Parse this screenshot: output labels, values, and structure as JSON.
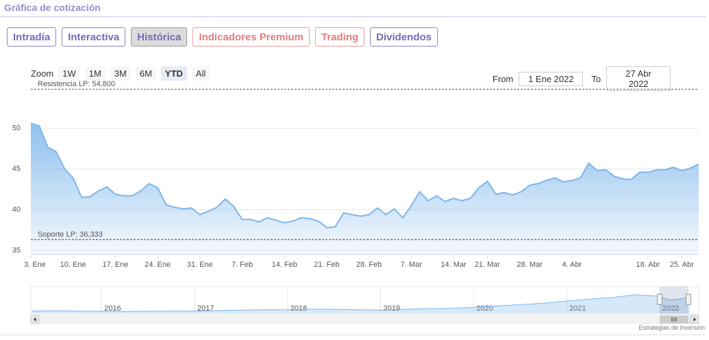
{
  "header": {
    "title": "Gráfica de cotización"
  },
  "tabs": [
    "Intradía",
    "Interactiva",
    "Histórica",
    "Indicadores Premium",
    "Trading",
    "Dividendos"
  ],
  "range_selector": {
    "label": "Zoom",
    "buttons": [
      "1W",
      "1M",
      "3M",
      "6M",
      "YTD",
      "All"
    ],
    "from_label": "From",
    "from_value": "1 Ene 2022",
    "to_label": "To",
    "to_value": "27 Abr 2022"
  },
  "credit": "Estrategias de Inversión",
  "chart_data": [
    {
      "type": "area",
      "color": "#7cb5ec",
      "categories": [
        "3. Ene",
        null,
        null,
        null,
        null,
        "10. Ene",
        null,
        null,
        null,
        null,
        "17. Ene",
        null,
        null,
        null,
        null,
        "24. Ene",
        null,
        null,
        null,
        null,
        "31. Ene",
        null,
        null,
        null,
        null,
        "7. Feb",
        null,
        null,
        null,
        null,
        "14. Feb",
        null,
        null,
        null,
        null,
        "21. Feb",
        null,
        null,
        null,
        null,
        "28. Feb",
        null,
        null,
        null,
        null,
        "7. Mar",
        null,
        null,
        null,
        null,
        "14. Mar",
        null,
        null,
        null,
        "21. Mar",
        null,
        null,
        null,
        null,
        "28. Mar",
        null,
        null,
        null,
        null,
        "4. Abr",
        null,
        null,
        null,
        null,
        null,
        null,
        null,
        null,
        "18. Abr",
        null,
        null,
        null,
        "25. Abr",
        null,
        null
      ],
      "values": [
        50.6,
        50.3,
        47.7,
        47.1,
        45.0,
        43.9,
        41.5,
        41.6,
        42.3,
        42.8,
        41.9,
        41.7,
        41.7,
        42.3,
        43.2,
        42.7,
        40.6,
        40.3,
        40.1,
        40.2,
        39.4,
        39.8,
        40.3,
        41.3,
        40.4,
        38.8,
        38.8,
        38.5,
        39.0,
        38.7,
        38.4,
        38.6,
        39.0,
        38.9,
        38.6,
        37.8,
        37.9,
        39.6,
        39.4,
        39.2,
        39.4,
        40.2,
        39.4,
        40.1,
        39.0,
        40.5,
        42.2,
        41.1,
        41.7,
        41.0,
        41.4,
        41.1,
        41.4,
        42.7,
        43.5,
        41.9,
        42.1,
        41.8,
        42.2,
        43.0,
        43.2,
        43.6,
        43.9,
        43.4,
        43.6,
        43.9,
        45.7,
        44.8,
        44.9,
        44.1,
        43.8,
        43.7,
        44.6,
        44.6,
        44.9,
        44.9,
        45.2,
        44.8,
        45.1,
        45.6
      ],
      "ylim": [
        34.5,
        55.5
      ],
      "yticks": [
        35,
        40,
        45,
        50
      ],
      "grid": true,
      "plot_lines": [
        {
          "value": 54.8,
          "label": "Resistencia LP: 54,800",
          "color": "#2e6b45"
        },
        {
          "value": 36.333,
          "label": "Soporte LP: 36,333",
          "color": "#8b1a1a"
        }
      ]
    },
    {
      "type": "navigator",
      "color": "#7cb5ec",
      "x": [
        2015.25,
        2015.5,
        2015.75,
        2016,
        2016.25,
        2016.5,
        2016.75,
        2017,
        2017.25,
        2017.5,
        2017.75,
        2018,
        2018.25,
        2018.5,
        2018.75,
        2019,
        2019.25,
        2019.5,
        2019.75,
        2020,
        2020.25,
        2020.5,
        2020.75,
        2021,
        2021.25,
        2021.5,
        2021.75,
        2022,
        2022.1,
        2022.32
      ],
      "values": [
        16,
        16.5,
        16,
        15.5,
        15,
        15.5,
        16,
        16,
        17,
        18,
        19,
        19,
        20,
        20,
        19,
        18,
        20,
        21,
        22,
        24,
        27,
        30,
        33,
        38,
        42,
        46,
        52,
        48,
        40,
        45
      ],
      "xlim": [
        2015.24,
        2022.42
      ],
      "xticks": [
        2016,
        2017,
        2018,
        2019,
        2020,
        2021,
        2022
      ],
      "ylim": [
        11,
        68
      ]
    }
  ]
}
